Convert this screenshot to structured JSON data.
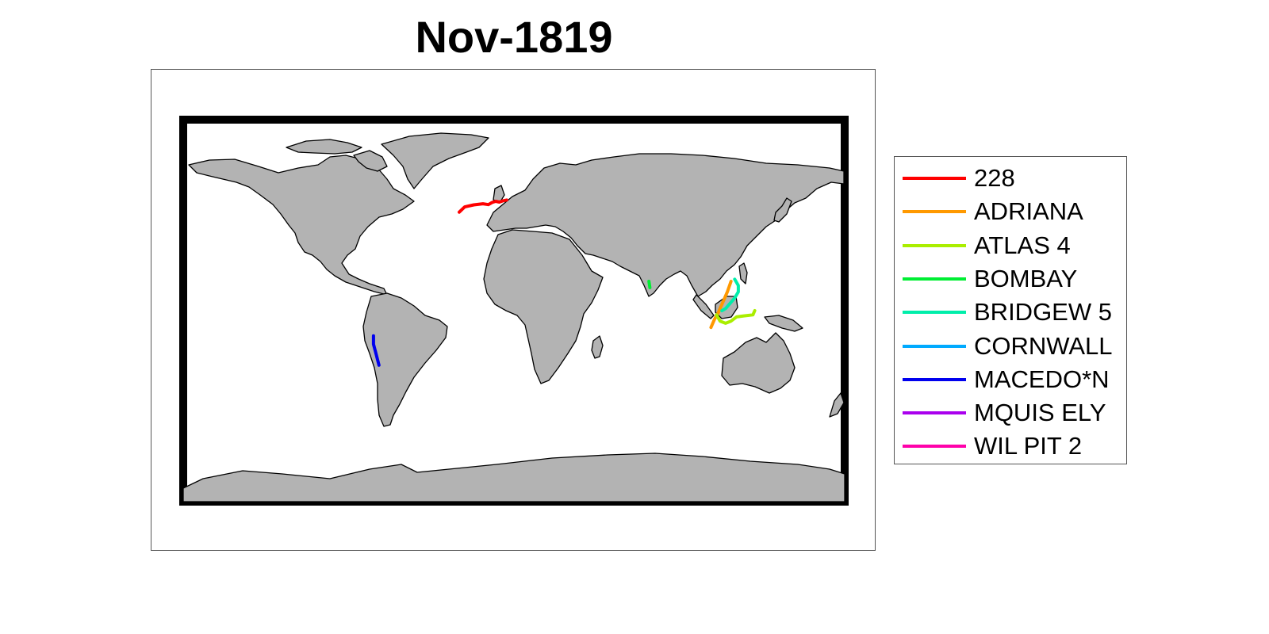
{
  "title": "Nov-1819",
  "tracks": [
    {
      "name": "228",
      "color": "#ff0000",
      "points": [
        [
          -30,
          47
        ],
        [
          -27,
          49.5
        ],
        [
          -22,
          50.5
        ],
        [
          -17,
          51
        ],
        [
          -14,
          50.6
        ],
        [
          -12,
          51.6
        ],
        [
          -10,
          52.2
        ],
        [
          -8,
          51.8
        ],
        [
          -6,
          52.4
        ],
        [
          -4,
          52.8
        ]
      ]
    },
    {
      "name": "ADRIANA",
      "color": "#ff9900",
      "points": [
        [
          119,
          14
        ],
        [
          117,
          9
        ],
        [
          114,
          3
        ],
        [
          112,
          -1
        ],
        [
          110,
          -4
        ],
        [
          108,
          -8
        ]
      ]
    },
    {
      "name": "ATLAS 4",
      "color": "#aaee00",
      "points": [
        [
          132,
          0
        ],
        [
          131,
          -2
        ],
        [
          126,
          -2.5
        ],
        [
          122,
          -3
        ],
        [
          119,
          -5
        ],
        [
          116,
          -6
        ],
        [
          113,
          -5
        ],
        [
          111,
          -2
        ]
      ]
    },
    {
      "name": "BOMBAY",
      "color": "#00ee33",
      "points": [
        [
          74,
          14
        ],
        [
          74.5,
          11
        ]
      ]
    },
    {
      "name": "BRIDGEW 5",
      "color": "#00eeaa",
      "points": [
        [
          121,
          15
        ],
        [
          123,
          12
        ],
        [
          123,
          9
        ],
        [
          121,
          6
        ],
        [
          118,
          3
        ],
        [
          116,
          1
        ],
        [
          114,
          0
        ]
      ]
    },
    {
      "name": "CORNWALL",
      "color": "#00aaff",
      "points": []
    },
    {
      "name": "MACEDO*N",
      "color": "#0000ee",
      "points": [
        [
          -77,
          -12
        ],
        [
          -77,
          -16
        ],
        [
          -75.5,
          -21
        ],
        [
          -74,
          -26
        ]
      ]
    },
    {
      "name": "MQUIS ELY",
      "color": "#aa00ee",
      "points": []
    },
    {
      "name": "WIL PIT 2",
      "color": "#ff00aa",
      "points": []
    }
  ]
}
